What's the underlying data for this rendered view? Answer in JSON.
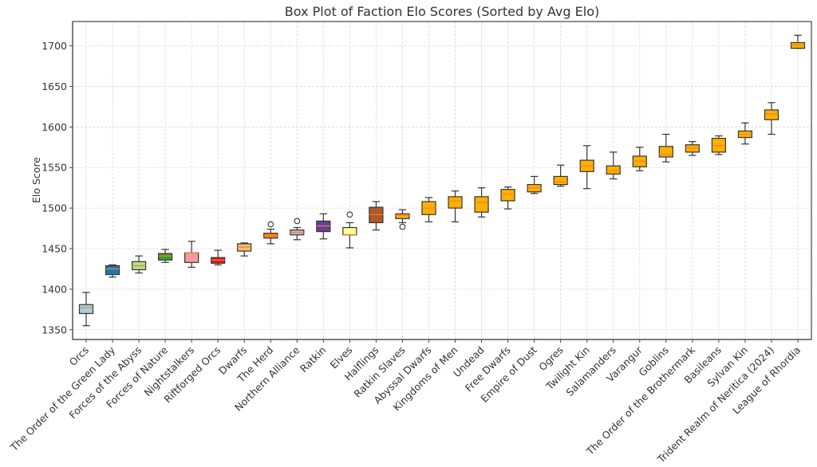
{
  "chart_data": {
    "type": "box",
    "title": "Box Plot of Faction Elo Scores (Sorted by Avg Elo)",
    "xlabel": "",
    "ylabel": "Elo Score",
    "ylim": [
      1338,
      1730
    ],
    "yticks": [
      1350,
      1400,
      1450,
      1500,
      1550,
      1600,
      1650,
      1700
    ],
    "grid": true,
    "legend": "none",
    "median_color": "#f07f2e",
    "categories": [
      "Orcs",
      "The Order of the Green Lady",
      "Forces of the Abyss",
      "Forces of Nature",
      "Nightstalkers",
      "Riftforged Orcs",
      "Dwarfs",
      "The Herd",
      "Northern Alliance",
      "Ratkin",
      "Elves",
      "Halflings",
      "Ratkin Slaves",
      "Abyssal Dwarfs",
      "Kingdoms of Men",
      "Undead",
      "Free Dwarfs",
      "Empire of Dust",
      "Ogres",
      "Twilight Kin",
      "Salamanders",
      "Varangur",
      "Goblins",
      "The Order of the Brothermark",
      "Basileans",
      "Sylvan Kin",
      "Trident Realm of Neritica (2024)",
      "League of Rhordia"
    ],
    "boxes": [
      {
        "name": "Orcs",
        "whisker_low": 1355,
        "q1": 1370,
        "median": 1377,
        "q3": 1381,
        "whisker_high": 1396,
        "outliers": [],
        "color": "#a6cee3"
      },
      {
        "name": "The Order of the Green Lady",
        "whisker_low": 1415,
        "q1": 1418,
        "median": 1425,
        "q3": 1429,
        "whisker_high": 1430,
        "outliers": [],
        "color": "#1f78b4"
      },
      {
        "name": "Forces of the Abyss",
        "whisker_low": 1420,
        "q1": 1424,
        "median": 1429,
        "q3": 1434,
        "whisker_high": 1441,
        "outliers": [],
        "color": "#b2df8a"
      },
      {
        "name": "Forces of Nature",
        "whisker_low": 1433,
        "q1": 1436,
        "median": 1441,
        "q3": 1444,
        "whisker_high": 1449,
        "outliers": [],
        "color": "#33a02c"
      },
      {
        "name": "Nightstalkers",
        "whisker_low": 1427,
        "q1": 1433,
        "median": 1445,
        "q3": 1445,
        "whisker_high": 1459,
        "outliers": [],
        "color": "#fb9a99"
      },
      {
        "name": "Riftforged Orcs",
        "whisker_low": 1430,
        "q1": 1432,
        "median": 1436,
        "q3": 1439,
        "whisker_high": 1448,
        "outliers": [],
        "color": "#e31a1c"
      },
      {
        "name": "Dwarfs",
        "whisker_low": 1441,
        "q1": 1447,
        "median": 1452,
        "q3": 1456,
        "whisker_high": 1457,
        "outliers": [],
        "color": "#fdbf6f"
      },
      {
        "name": "The Herd",
        "whisker_low": 1456,
        "q1": 1463,
        "median": 1466,
        "q3": 1469,
        "whisker_high": 1474,
        "outliers": [
          1480
        ],
        "color": "#ff7f00"
      },
      {
        "name": "Northern Alliance",
        "whisker_low": 1461,
        "q1": 1467,
        "median": 1470,
        "q3": 1473,
        "whisker_high": 1476,
        "outliers": [
          1484
        ],
        "color": "#cab2d6"
      },
      {
        "name": "Ratkin",
        "whisker_low": 1462,
        "q1": 1471,
        "median": 1478,
        "q3": 1484,
        "whisker_high": 1493,
        "outliers": [],
        "color": "#6a3d9a"
      },
      {
        "name": "Elves",
        "whisker_low": 1451,
        "q1": 1467,
        "median": 1467,
        "q3": 1476,
        "whisker_high": 1482,
        "outliers": [
          1492
        ],
        "color": "#ffff99"
      },
      {
        "name": "Halflings",
        "whisker_low": 1473,
        "q1": 1482,
        "median": 1492,
        "q3": 1501,
        "whisker_high": 1508,
        "outliers": [],
        "color": "#b15928"
      },
      {
        "name": "Ratkin Slaves",
        "whisker_low": 1482,
        "q1": 1487,
        "median": 1491,
        "q3": 1493,
        "whisker_high": 1498,
        "outliers": [
          1477
        ],
        "color": "#ffb000"
      },
      {
        "name": "Abyssal Dwarfs",
        "whisker_low": 1483,
        "q1": 1492,
        "median": 1500,
        "q3": 1508,
        "whisker_high": 1513,
        "outliers": [],
        "color": "#ffb000"
      },
      {
        "name": "Kingdoms of Men",
        "whisker_low": 1483,
        "q1": 1500,
        "median": 1509,
        "q3": 1514,
        "whisker_high": 1521,
        "outliers": [],
        "color": "#ffb000"
      },
      {
        "name": "Undead",
        "whisker_low": 1489,
        "q1": 1495,
        "median": 1507,
        "q3": 1514,
        "whisker_high": 1525,
        "outliers": [],
        "color": "#ffb000"
      },
      {
        "name": "Free Dwarfs",
        "whisker_low": 1499,
        "q1": 1509,
        "median": 1517,
        "q3": 1523,
        "whisker_high": 1526,
        "outliers": [],
        "color": "#ffb000"
      },
      {
        "name": "Empire of Dust",
        "whisker_low": 1518,
        "q1": 1520,
        "median": 1525,
        "q3": 1529,
        "whisker_high": 1539,
        "outliers": [],
        "color": "#ffb000"
      },
      {
        "name": "Ogres",
        "whisker_low": 1527,
        "q1": 1529,
        "median": 1532,
        "q3": 1539,
        "whisker_high": 1553,
        "outliers": [],
        "color": "#ffb000"
      },
      {
        "name": "Twilight Kin",
        "whisker_low": 1524,
        "q1": 1545,
        "median": 1552,
        "q3": 1559,
        "whisker_high": 1577,
        "outliers": [],
        "color": "#ffb000"
      },
      {
        "name": "Salamanders",
        "whisker_low": 1536,
        "q1": 1542,
        "median": 1546,
        "q3": 1552,
        "whisker_high": 1569,
        "outliers": [],
        "color": "#ffb000"
      },
      {
        "name": "Varangur",
        "whisker_low": 1546,
        "q1": 1551,
        "median": 1558,
        "q3": 1564,
        "whisker_high": 1575,
        "outliers": [],
        "color": "#ffb000"
      },
      {
        "name": "Goblins",
        "whisker_low": 1557,
        "q1": 1563,
        "median": 1566,
        "q3": 1576,
        "whisker_high": 1591,
        "outliers": [],
        "color": "#ffb000"
      },
      {
        "name": "The Order of the Brothermark",
        "whisker_low": 1565,
        "q1": 1569,
        "median": 1574,
        "q3": 1578,
        "whisker_high": 1582,
        "outliers": [],
        "color": "#ffb000"
      },
      {
        "name": "Basileans",
        "whisker_low": 1566,
        "q1": 1569,
        "median": 1577,
        "q3": 1586,
        "whisker_high": 1589,
        "outliers": [],
        "color": "#ffb000"
      },
      {
        "name": "Sylvan Kin",
        "whisker_low": 1579,
        "q1": 1587,
        "median": 1591,
        "q3": 1595,
        "whisker_high": 1605,
        "outliers": [],
        "color": "#ffb000"
      },
      {
        "name": "Trident Realm of Neritica (2024)",
        "whisker_low": 1591,
        "q1": 1609,
        "median": 1616,
        "q3": 1621,
        "whisker_high": 1630,
        "outliers": [],
        "color": "#ffb000"
      },
      {
        "name": "League of Rhordia",
        "whisker_low": 1697,
        "q1": 1697,
        "median": 1701,
        "q3": 1704,
        "whisker_high": 1713,
        "outliers": [],
        "color": "#ffb000"
      }
    ]
  }
}
